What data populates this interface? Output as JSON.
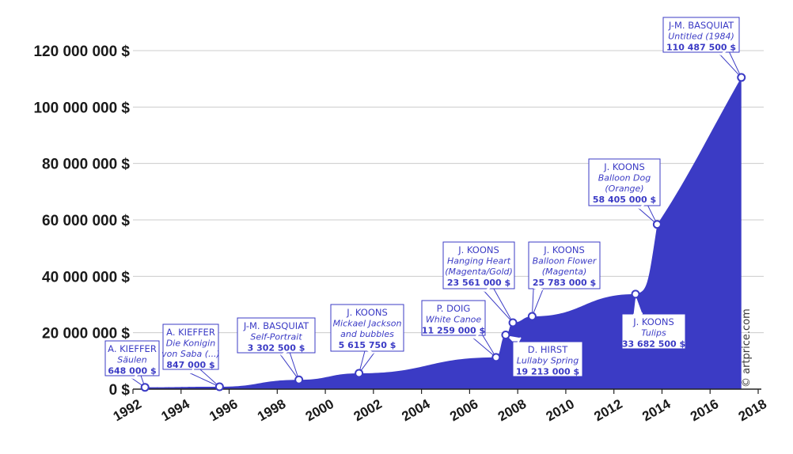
{
  "credit": "© artprice.com",
  "chart_data": {
    "type": "area",
    "title": "",
    "xlabel": "",
    "ylabel": "",
    "xlim": [
      1992,
      2018
    ],
    "ylim": [
      0,
      120000000
    ],
    "grid": true,
    "x_ticks": [
      "1992",
      "1994",
      "1996",
      "1998",
      "2000",
      "2002",
      "2004",
      "2006",
      "2008",
      "2010",
      "2012",
      "2014",
      "2016",
      "2018"
    ],
    "y_ticks": [
      "0 $",
      "20 000 000 $",
      "40 000 000 $",
      "60 000 000 $",
      "80 000 000 $",
      "100 000 000 $",
      "120 000 000 $"
    ],
    "colors": {
      "area": "#3b3bc5",
      "callout_border": "#3b3bc5",
      "callout_text": "#3b3bc5",
      "grid": "#cccccc"
    },
    "series": [
      {
        "values": [
          {
            "x": 1992.5,
            "y": 648000
          },
          {
            "x": 1995.6,
            "y": 847000
          },
          {
            "x": 1998.9,
            "y": 3302500
          },
          {
            "x": 2001.4,
            "y": 5615750
          },
          {
            "x": 2007.1,
            "y": 11259000
          },
          {
            "x": 2007.5,
            "y": 19213000
          },
          {
            "x": 2007.8,
            "y": 23561000
          },
          {
            "x": 2008.6,
            "y": 25783000
          },
          {
            "x": 2012.9,
            "y": 33682500
          },
          {
            "x": 2013.8,
            "y": 58405000
          },
          {
            "x": 2017.3,
            "y": 110487500
          }
        ]
      }
    ],
    "annotations": [
      {
        "artist": "A. KIEFFER",
        "lines": [
          "Säulen"
        ],
        "price": "648 000 $",
        "x": 1992.5,
        "y": 648000
      },
      {
        "artist": "A. KIEFFER",
        "lines": [
          "Die Konigin",
          "von Saba (...)"
        ],
        "price": "847 000 $",
        "x": 1995.6,
        "y": 847000
      },
      {
        "artist": "J-M. BASQUIAT",
        "lines": [
          "Self-Portrait"
        ],
        "price": "3 302 500 $",
        "x": 1998.9,
        "y": 3302500
      },
      {
        "artist": "J. KOONS",
        "lines": [
          "Mickael Jackson",
          "and bubbles"
        ],
        "price": "5 615 750 $",
        "x": 2001.4,
        "y": 5615750
      },
      {
        "artist": "P. DOIG",
        "lines": [
          "White Canoe"
        ],
        "price": "11 259 000 $",
        "x": 2007.1,
        "y": 11259000
      },
      {
        "artist": "D. HIRST",
        "lines": [
          "Lullaby Spring"
        ],
        "price": "19 213 000 $",
        "x": 2007.5,
        "y": 19213000
      },
      {
        "artist": "J. KOONS",
        "lines": [
          "Hanging Heart",
          "(Magenta/Gold)"
        ],
        "price": "23 561 000 $",
        "x": 2007.8,
        "y": 23561000
      },
      {
        "artist": "J. KOONS",
        "lines": [
          "Balloon Flower",
          "(Magenta)"
        ],
        "price": "25 783 000 $",
        "x": 2008.6,
        "y": 25783000
      },
      {
        "artist": "J. KOONS",
        "lines": [
          "Tulips"
        ],
        "price": "33 682 500 $",
        "x": 2012.9,
        "y": 33682500
      },
      {
        "artist": "J. KOONS",
        "lines": [
          "Balloon Dog",
          "(Orange)"
        ],
        "price": "58 405 000 $",
        "x": 2013.8,
        "y": 58405000
      },
      {
        "artist": "J-M. BASQUIAT",
        "lines": [
          "Untitled (1984)"
        ],
        "price": "110 487 500 $",
        "x": 2017.3,
        "y": 110487500
      }
    ]
  }
}
